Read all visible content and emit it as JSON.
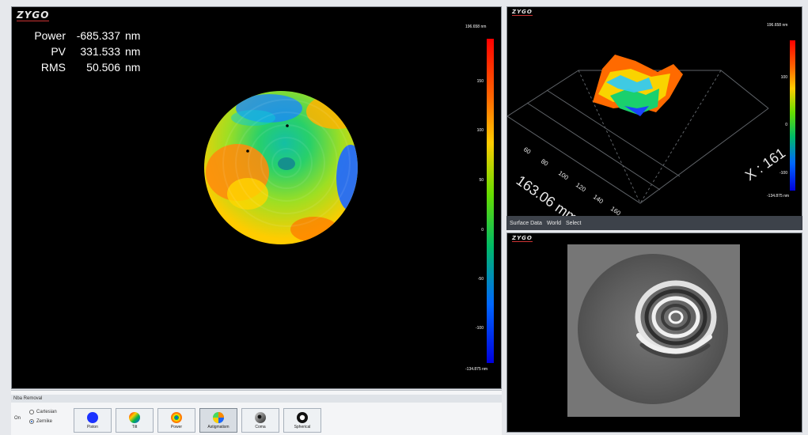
{
  "app": {
    "logo_text": "ZYGO"
  },
  "main_view": {
    "metrics": [
      {
        "label": "Power",
        "value": "-685.337",
        "unit": "nm"
      },
      {
        "label": "PV",
        "value": "331.533",
        "unit": "nm"
      },
      {
        "label": "RMS",
        "value": "50.506",
        "unit": "nm"
      }
    ],
    "colorbar": {
      "max_label": "196.658 nm",
      "min_label": "-134.875 nm",
      "ticks": [
        "150",
        "100",
        "50",
        "0",
        "-50",
        "-100"
      ]
    }
  },
  "surface_view": {
    "colorbar": {
      "max_label": "196.658 nm",
      "min_label": "-134.875 nm",
      "ticks": [
        "100",
        "0",
        "-100"
      ]
    },
    "axis_label_x": "X : 161",
    "axis_label_y": "163.06 mm",
    "axis_ticks": [
      "60",
      "80",
      "100",
      "120",
      "140",
      "160"
    ],
    "toolbar": [
      "Surface Data",
      "World",
      "Select"
    ]
  },
  "removal_panel": {
    "title": "Nba Removal",
    "on_label": "On",
    "mode_options": [
      {
        "label": "Cartesian",
        "selected": false
      },
      {
        "label": "Zernike",
        "selected": true
      }
    ],
    "buttons": [
      {
        "label": "Piston",
        "icon": "piston-icon"
      },
      {
        "label": "Tilt",
        "icon": "tilt-icon"
      },
      {
        "label": "Power",
        "icon": "power-icon"
      },
      {
        "label": "Astigmatism",
        "icon": "astigmatism-icon"
      },
      {
        "label": "Coma",
        "icon": "coma-icon"
      },
      {
        "label": "Spherical",
        "icon": "spherical-icon"
      }
    ],
    "active_button": "Astigmatism"
  },
  "colors": {
    "colorbar": [
      "#ff0000",
      "#ff6600",
      "#ffcc00",
      "#66dd00",
      "#00bb66",
      "#0066ff",
      "#0000dd"
    ],
    "panel_background": "#000000",
    "selected_radio": "#1d5fc4"
  }
}
